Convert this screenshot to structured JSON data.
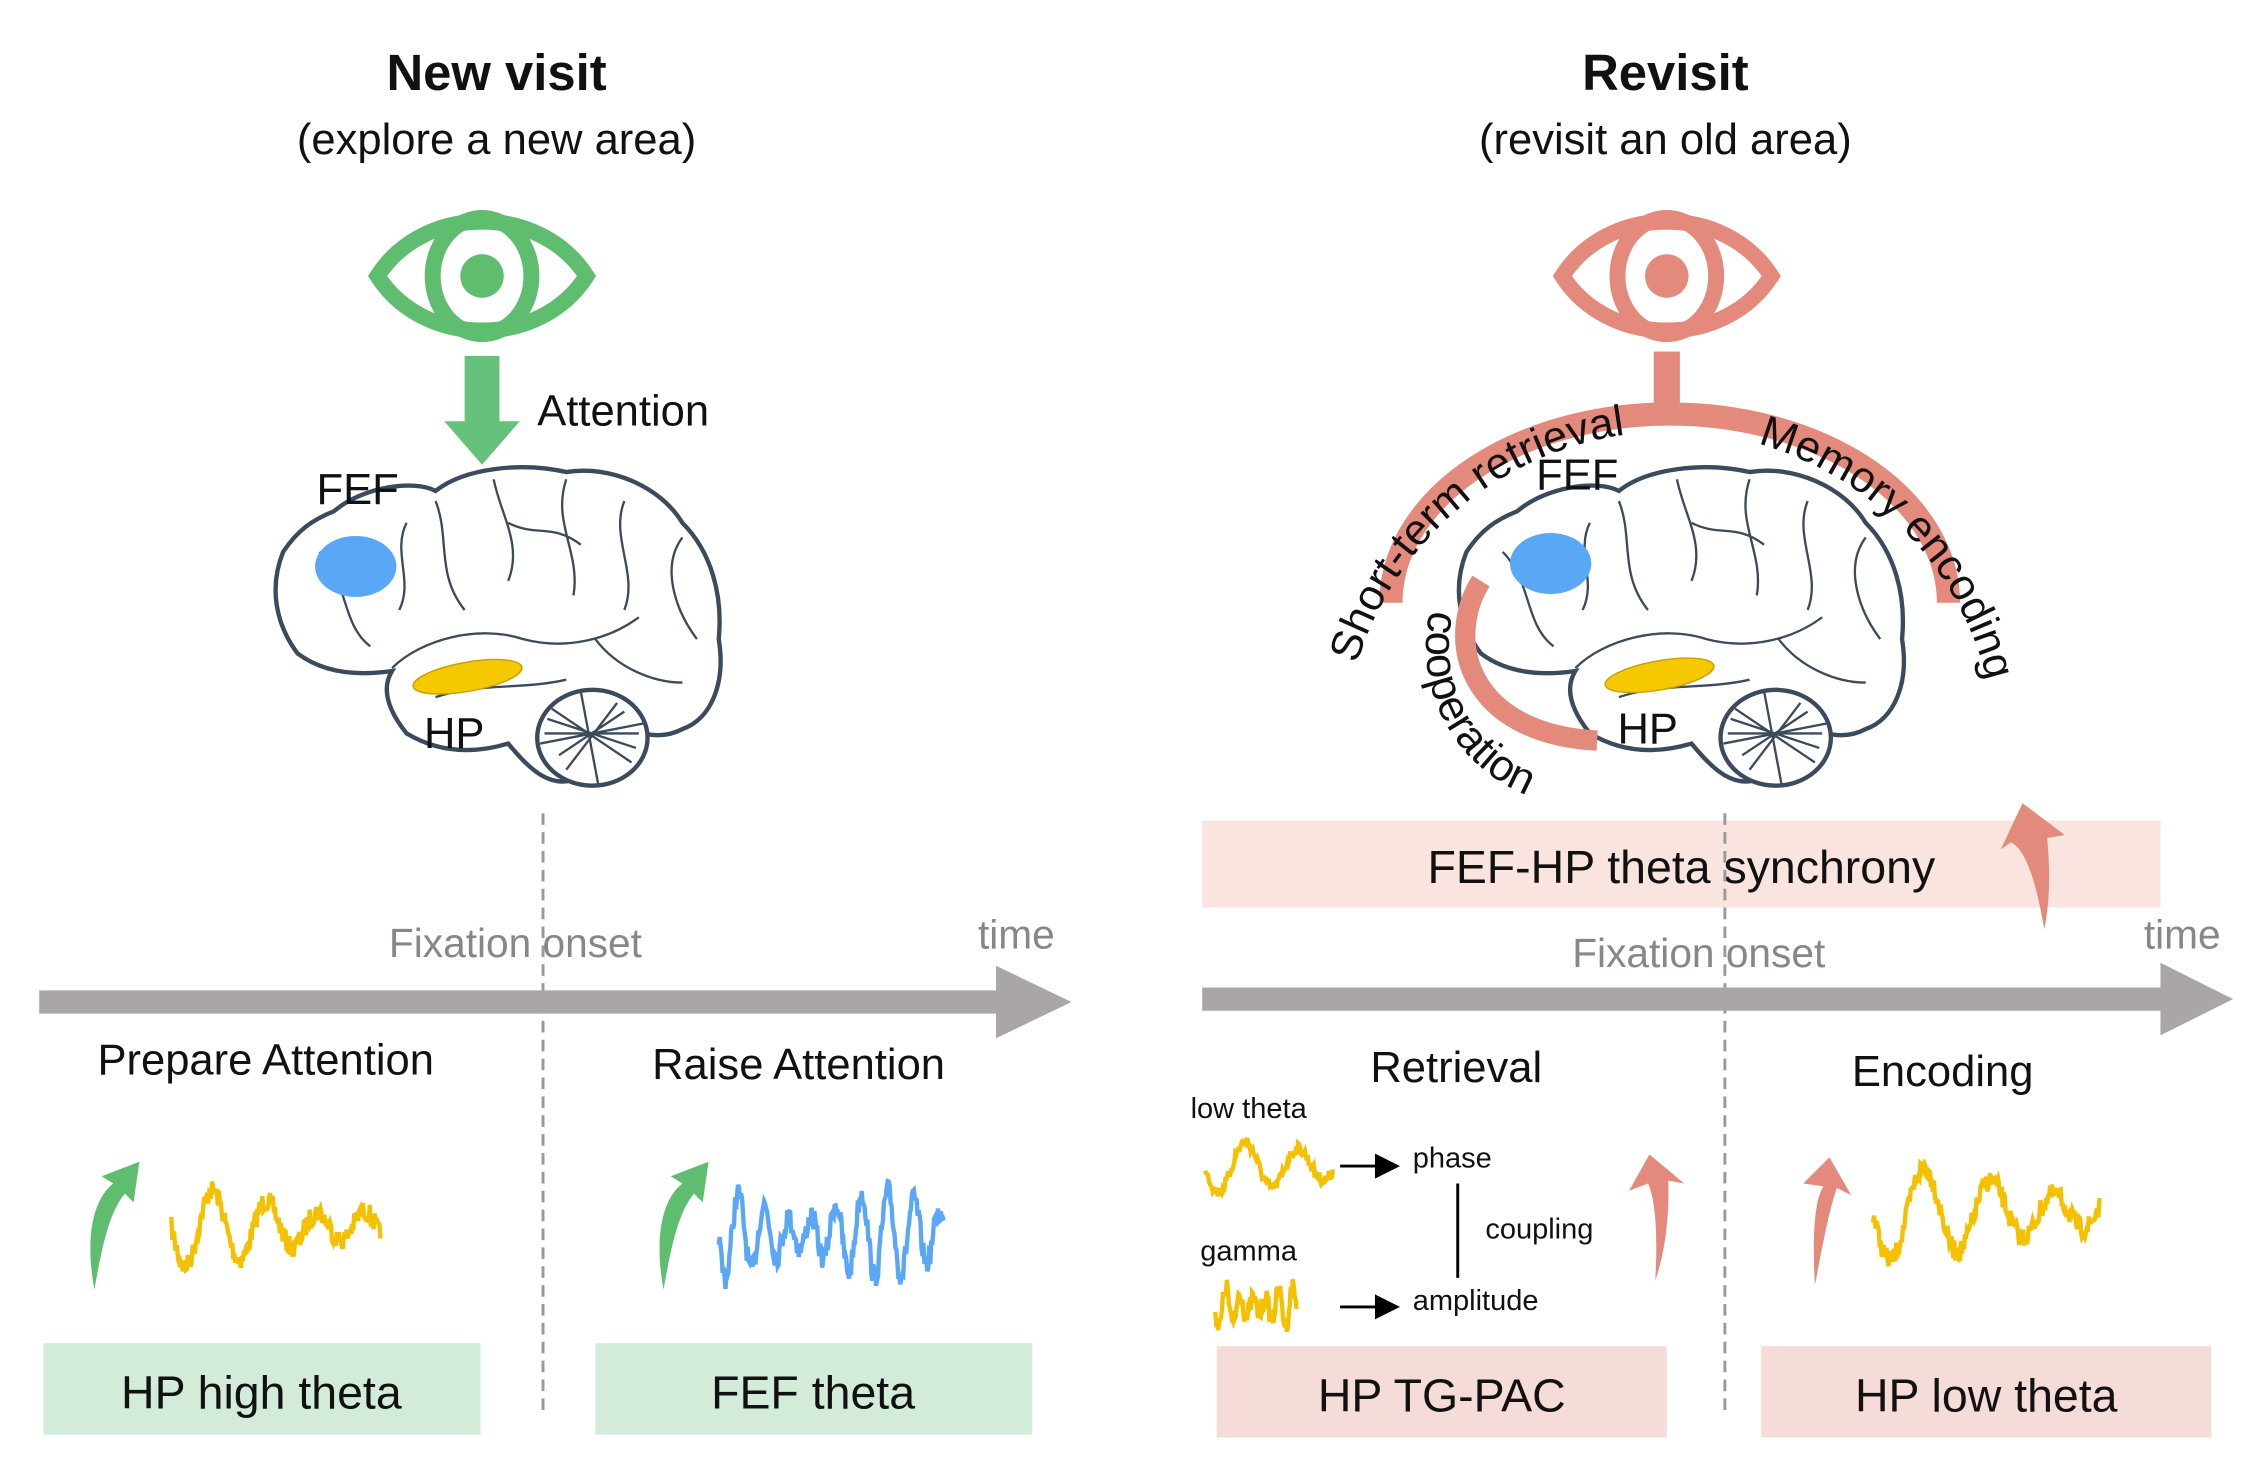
{
  "colors": {
    "green": "#5fbd70",
    "blue": "#5aa7f7",
    "yellow": "#f5c000",
    "salmon": "#e48a7c",
    "gray": "#aaa6a6",
    "green_box": "#d3ecda",
    "pink_box": "#f6dcd8"
  },
  "left": {
    "title": "New visit",
    "subtitle": "(explore a new area)",
    "attention_label": "Attention",
    "fef_label": "FEF",
    "hp_label": "HP",
    "fixation_label": "Fixation onset",
    "time_label": "time",
    "phase1": "Prepare Attention",
    "phase2": "Raise Attention",
    "box1": "HP high theta",
    "box2": "FEF theta",
    "icons": [
      "eye-icon",
      "down-arrow-icon",
      "brain-icon",
      "up-arrow-icon"
    ]
  },
  "right": {
    "title": "Revisit",
    "subtitle": "(revisit an old area)",
    "arc_left_label": "Short-term retrieval",
    "arc_right_label": "Memory encoding",
    "cooperation_label": "cooperation",
    "fef_label": "FEF",
    "hp_label": "HP",
    "sync_label": "FEF-HP theta synchrony",
    "fixation_label": "Fixation onset",
    "time_label": "time",
    "phase1": "Retrieval",
    "phase2": "Encoding",
    "low_theta_label": "low theta",
    "gamma_label": "gamma",
    "phase_label": "phase",
    "amplitude_label": "amplitude",
    "coupling_label": "coupling",
    "box1": "HP TG-PAC",
    "box2": "HP low theta",
    "icons": [
      "eye-icon",
      "arc-icon",
      "brain-icon",
      "up-arrow-icon"
    ]
  }
}
